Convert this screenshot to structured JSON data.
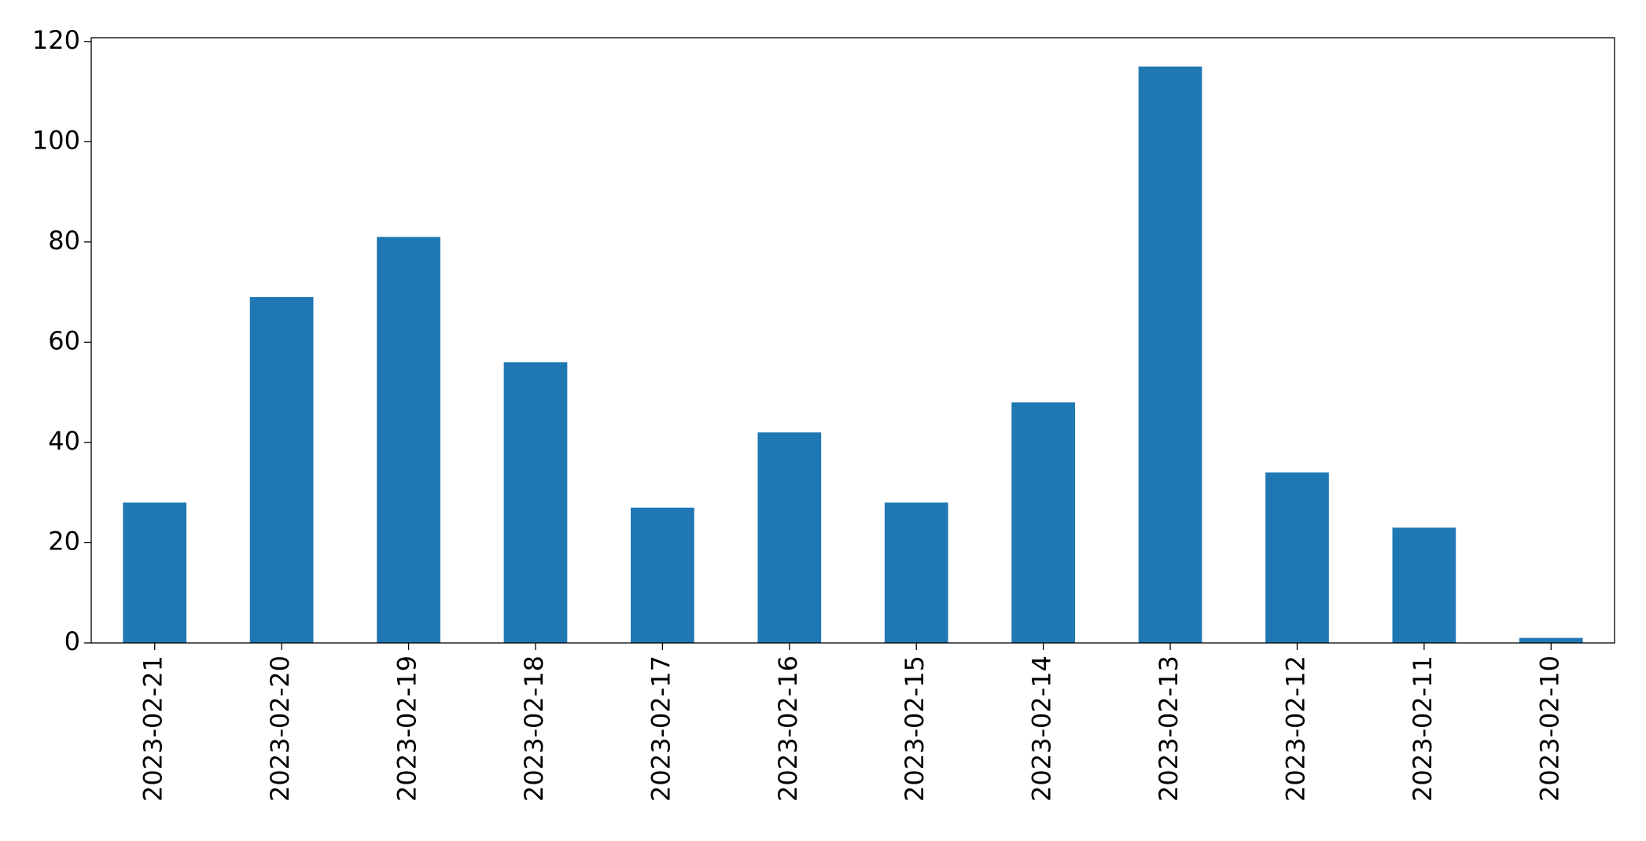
{
  "chart_data": {
    "type": "bar",
    "categories": [
      "2023-02-21",
      "2023-02-20",
      "2023-02-19",
      "2023-02-18",
      "2023-02-17",
      "2023-02-16",
      "2023-02-15",
      "2023-02-14",
      "2023-02-13",
      "2023-02-12",
      "2023-02-11",
      "2023-02-10"
    ],
    "values": [
      28,
      69,
      81,
      56,
      27,
      42,
      28,
      48,
      115,
      34,
      23,
      1
    ],
    "color": "#1f77b4",
    "ylim": [
      0,
      120.75
    ],
    "yticks": [
      0,
      20,
      40,
      60,
      80,
      100,
      120
    ],
    "grid": false
  }
}
